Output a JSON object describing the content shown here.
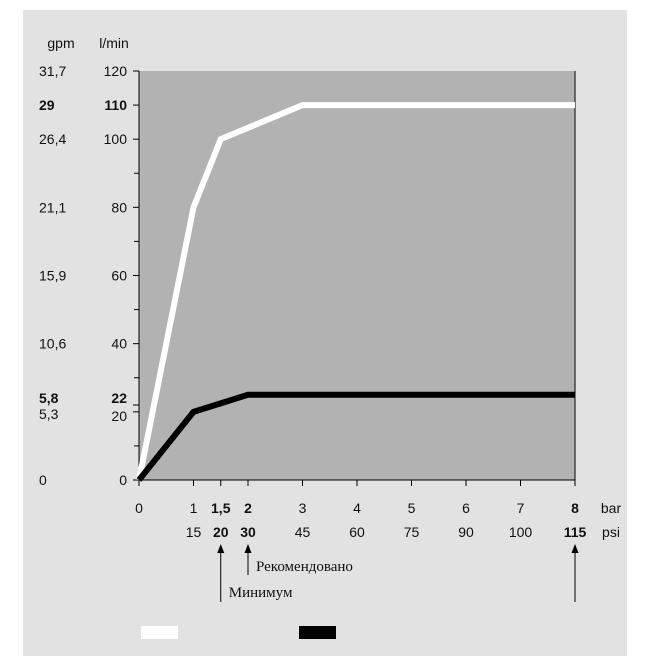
{
  "chart_data": {
    "type": "line",
    "title": "",
    "x_units": [
      "bar",
      "psi"
    ],
    "y_units": [
      "gpm",
      "l/min"
    ],
    "xlim": [
      0,
      8
    ],
    "ylim": [
      0,
      120
    ],
    "x_ticks": [
      {
        "bar": "0",
        "psi": "",
        "emph": false
      },
      {
        "bar": "1",
        "psi": "15",
        "emph": false
      },
      {
        "bar": "1,5",
        "psi": "20",
        "emph": true
      },
      {
        "bar": "2",
        "psi": "30",
        "emph": true
      },
      {
        "bar": "3",
        "psi": "45",
        "emph": false
      },
      {
        "bar": "4",
        "psi": "60",
        "emph": false
      },
      {
        "bar": "5",
        "psi": "75",
        "emph": false
      },
      {
        "bar": "6",
        "psi": "90",
        "emph": false
      },
      {
        "bar": "7",
        "psi": "100",
        "emph": false
      },
      {
        "bar": "8",
        "psi": "115",
        "emph": true
      }
    ],
    "y_ticks": [
      {
        "lpm": "0",
        "gpm": "0",
        "emph": false
      },
      {
        "lpm": "20",
        "gpm": "5,3",
        "emph": false
      },
      {
        "lpm": "22",
        "gpm": "5,8",
        "emph": true
      },
      {
        "lpm": "40",
        "gpm": "10,6",
        "emph": false
      },
      {
        "lpm": "60",
        "gpm": "15,9",
        "emph": false
      },
      {
        "lpm": "80",
        "gpm": "21,1",
        "emph": false
      },
      {
        "lpm": "100",
        "gpm": "26,4",
        "emph": false
      },
      {
        "lpm": "110",
        "gpm": "29",
        "emph": true
      },
      {
        "lpm": "120",
        "gpm": "31,7",
        "emph": false
      }
    ],
    "minor_y": [
      10,
      30,
      50,
      70,
      90
    ],
    "series": [
      {
        "color": "#ffffff",
        "x": [
          0,
          1,
          1.5,
          3,
          8
        ],
        "y": [
          0,
          80,
          100,
          110,
          110
        ]
      },
      {
        "color": "#000000",
        "x": [
          0,
          1,
          2,
          8
        ],
        "y": [
          0,
          20,
          25,
          25
        ]
      }
    ],
    "annotations": [
      {
        "text": "Рекомендовано",
        "x": 2
      },
      {
        "text": "Минимум",
        "x": 1.5
      },
      {
        "text": "",
        "x": 8
      }
    ],
    "grid": false,
    "legend": "bottom-left"
  }
}
